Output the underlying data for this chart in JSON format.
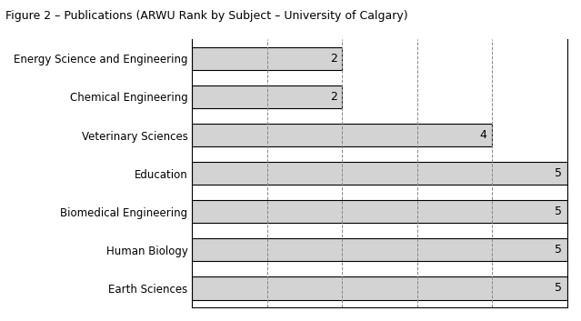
{
  "title": "Figure 2 – Publications (ARWU Rank by Subject – University of Calgary)",
  "categories": [
    "Earth Sciences",
    "Human Biology",
    "Biomedical Engineering",
    "Education",
    "Veterinary Sciences",
    "Chemical Engineering",
    "Energy Science and Engineering"
  ],
  "values": [
    5,
    5,
    5,
    5,
    4,
    2,
    2
  ],
  "bar_color": "#d3d3d3",
  "bar_edgecolor": "#000000",
  "xlim": [
    0,
    5
  ],
  "xticks": [
    1,
    2,
    3,
    4,
    5
  ],
  "grid_color": "#888888",
  "background_color": "#ffffff",
  "title_fontsize": 9,
  "label_fontsize": 8.5,
  "value_fontsize": 9,
  "bar_height": 0.6
}
